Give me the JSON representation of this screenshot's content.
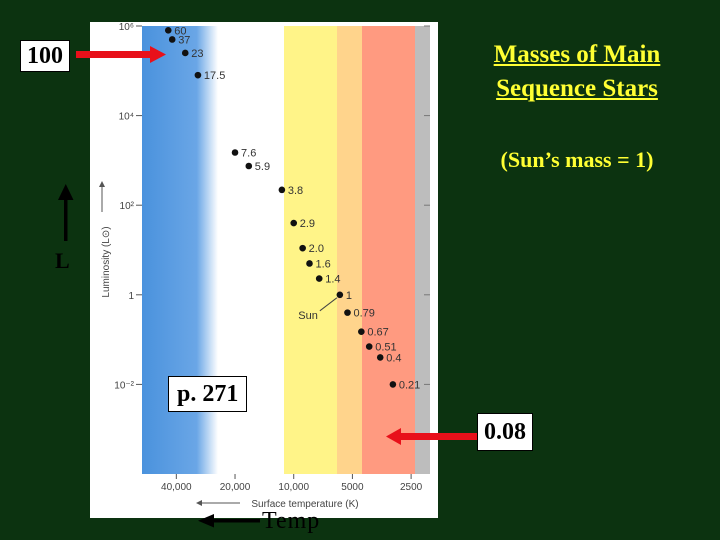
{
  "slide": {
    "title": "Masses of Main Sequence Stars",
    "subtitle": "(Sun’s mass = 1)",
    "label_100": "100",
    "label_008": "0.08",
    "label_page": "p. 271",
    "label_L": "L",
    "label_temp": "Temp",
    "colors": {
      "background": "#0c3310",
      "title": "#ffff33",
      "arrow": "#e8101a"
    }
  },
  "chart_data": {
    "type": "scatter",
    "xlabel": "Surface temperature (K)",
    "ylabel": "Luminosity (L⊙)",
    "x_scale": "log-reversed",
    "y_scale": "log",
    "xlim": [
      60000,
      2000
    ],
    "ylim": [
      0.0001,
      1000000
    ],
    "x_ticks": [
      40000,
      20000,
      10000,
      5000,
      2500
    ],
    "x_tick_labels": [
      "40,000",
      "20,000",
      "10,000",
      "5000",
      "2500"
    ],
    "y_ticks": [
      0.01,
      1,
      100,
      10000,
      1000000
    ],
    "y_tick_labels": [
      "10⁻²",
      "1",
      "10²",
      "10⁴",
      "10⁶"
    ],
    "grid": false,
    "sun_label": "Sun",
    "background_bands": [
      "#4a92dd",
      "#ffffff",
      "#fff488",
      "#ffd48c",
      "#ff9a80",
      "#bdbdbd"
    ],
    "points": [
      {
        "mass": "60",
        "temp": 44000,
        "lum": 800000
      },
      {
        "mass": "37",
        "temp": 42000,
        "lum": 500000
      },
      {
        "mass": "23",
        "temp": 36000,
        "lum": 250000
      },
      {
        "mass": "17.5",
        "temp": 31000,
        "lum": 80000
      },
      {
        "mass": "7.6",
        "temp": 20000,
        "lum": 1500
      },
      {
        "mass": "5.9",
        "temp": 17000,
        "lum": 750
      },
      {
        "mass": "3.8",
        "temp": 11500,
        "lum": 220
      },
      {
        "mass": "2.9",
        "temp": 10000,
        "lum": 40
      },
      {
        "mass": "2.0",
        "temp": 9000,
        "lum": 11
      },
      {
        "mass": "1.6",
        "temp": 8300,
        "lum": 5
      },
      {
        "mass": "1.4",
        "temp": 7400,
        "lum": 2.3
      },
      {
        "mass": "1",
        "temp": 5800,
        "lum": 1
      },
      {
        "mass": "0.79",
        "temp": 5300,
        "lum": 0.4
      },
      {
        "mass": "0.67",
        "temp": 4500,
        "lum": 0.15
      },
      {
        "mass": "0.51",
        "temp": 4100,
        "lum": 0.07
      },
      {
        "mass": "0.4",
        "temp": 3600,
        "lum": 0.04
      },
      {
        "mass": "0.21",
        "temp": 3100,
        "lum": 0.01
      }
    ]
  }
}
